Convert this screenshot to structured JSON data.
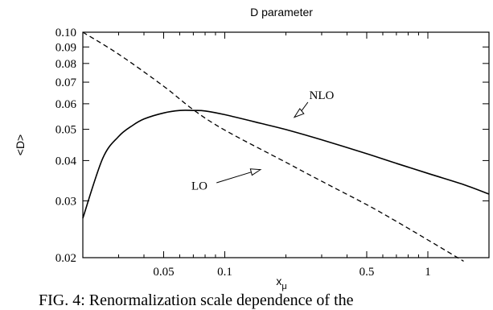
{
  "chart_data": {
    "type": "line",
    "title": "D parameter",
    "xlabel": "x",
    "xlabel_sub": "μ",
    "ylabel": "<D>",
    "xscale": "log",
    "yscale": "log",
    "xlim": [
      0.02,
      2.0
    ],
    "ylim": [
      0.02,
      0.1
    ],
    "xticks": [
      0.05,
      0.1,
      0.5,
      1
    ],
    "xtick_labels": [
      "0.05",
      "0.1",
      "0.5",
      "1"
    ],
    "yticks": [
      0.02,
      0.03,
      0.04,
      0.05,
      0.06,
      0.07,
      0.08,
      0.09,
      0.1
    ],
    "ytick_labels": [
      "0.02",
      "0.03",
      "0.04",
      "0.05",
      "0.06",
      "0.07",
      "0.08",
      "0.09",
      "0.10"
    ],
    "series": [
      {
        "name": "NLO",
        "style": "solid",
        "color": "#000000",
        "x": [
          0.02,
          0.025,
          0.03,
          0.035,
          0.04,
          0.05,
          0.06,
          0.07,
          0.08,
          0.1,
          0.15,
          0.2,
          0.3,
          0.5,
          0.7,
          1.0,
          1.5,
          2.0
        ],
        "y": [
          0.0265,
          0.0405,
          0.0475,
          0.0513,
          0.0538,
          0.0562,
          0.0572,
          0.0572,
          0.057,
          0.0555,
          0.0522,
          0.0499,
          0.0464,
          0.042,
          0.0392,
          0.0365,
          0.0337,
          0.0315
        ]
      },
      {
        "name": "LO",
        "style": "dashed",
        "color": "#000000",
        "x": [
          0.02,
          0.03,
          0.05,
          0.07,
          0.1,
          0.2,
          0.3,
          0.5,
          0.7,
          1.0,
          1.5
        ],
        "y": [
          0.1,
          0.0855,
          0.068,
          0.0575,
          0.0497,
          0.0395,
          0.0345,
          0.0292,
          0.0259,
          0.0227,
          0.0195
        ]
      }
    ],
    "annotations": [
      {
        "text": "NLO",
        "x": 0.3,
        "y": 0.062,
        "arrow_to": [
          0.22,
          0.0545
        ]
      },
      {
        "text": "LO",
        "x": 0.075,
        "y": 0.0325,
        "arrow_to": [
          0.15,
          0.0375
        ]
      }
    ]
  },
  "caption": "FIG. 4: Renormalization scale dependence of the"
}
